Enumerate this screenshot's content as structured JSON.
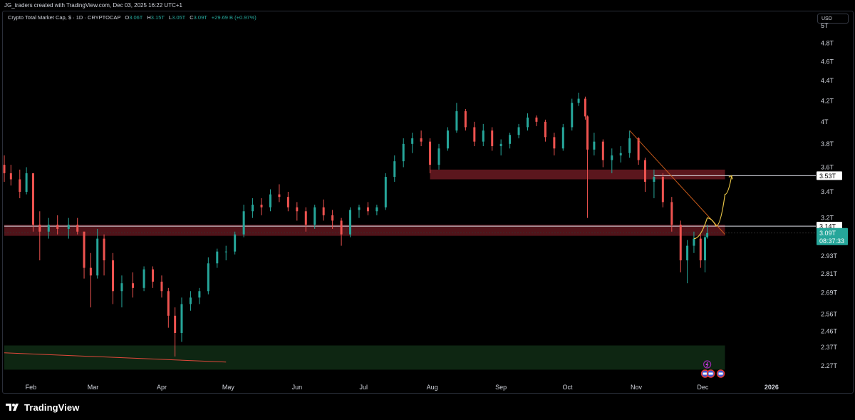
{
  "credit": "JG_traders created with TradingView.com, Dec 03, 2025 16:22 UTC+1",
  "legend": {
    "title": "Crypto Total Market Cap, $ · 1D · CRYPTOCAP",
    "o_label": "O",
    "o_value": "3.06T",
    "h_label": "H",
    "h_value": "3.15T",
    "l_label": "L",
    "l_value": "3.05T",
    "c_label": "C",
    "c_value": "3.09T",
    "change": "+29.69 B (+0.97%)"
  },
  "currency_button": "USD",
  "brand": "TradingView",
  "colors": {
    "up": "#26a69a",
    "down": "#ef5350",
    "supply_zone": "#6b1a22",
    "demand_zone": "#0f2a14",
    "trendline": "#c75a1a",
    "projection": "#e8c547",
    "price_tag": "#26a69a"
  },
  "chart_data": {
    "type": "candlestick",
    "x_ticks": [
      "Feb",
      "Mar",
      "Apr",
      "May",
      "Jun",
      "Jul",
      "Aug",
      "Sep",
      "Oct",
      "Nov",
      "Dec",
      "2026"
    ],
    "y_ticks": [
      "5T",
      "4.8T",
      "4.6T",
      "4.4T",
      "4.2T",
      "4T",
      "3.8T",
      "3.6T",
      "3.4T",
      "3.2T",
      "2.93T",
      "2.81T",
      "2.69T",
      "2.56T",
      "2.46T",
      "2.37T",
      "2.27T"
    ],
    "y_unit": "T",
    "y_scale": "log",
    "ylim": [
      2.2,
      5.05
    ],
    "xlim": [
      "2025-01-20",
      "2026-01-20"
    ],
    "price_labels": [
      {
        "label": "3.53T",
        "value": 3.53,
        "style": "line"
      },
      {
        "label": "3.14T",
        "value": 3.14,
        "style": "line"
      },
      {
        "label": "3.09T",
        "value": 3.09,
        "style": "current",
        "countdown": "08:37:33"
      }
    ],
    "zones": [
      {
        "name": "supply zone Aug",
        "from": "2025-07-31",
        "to": "2025-12-11",
        "low": 3.5,
        "high": 3.58
      },
      {
        "name": "red zone",
        "from": "2025-01-20",
        "to": "2025-12-11",
        "low": 3.07,
        "high": 3.15
      },
      {
        "name": "demand zone",
        "from": "2025-01-20",
        "to": "2025-12-11",
        "low": 2.25,
        "high": 2.38
      }
    ],
    "candles_approx": [
      [
        "2025-01-20",
        3.62,
        3.7,
        3.48,
        3.55
      ],
      [
        "2025-01-23",
        3.55,
        3.62,
        3.45,
        3.5
      ],
      [
        "2025-01-27",
        3.5,
        3.58,
        3.35,
        3.4
      ],
      [
        "2025-01-30",
        3.4,
        3.6,
        3.38,
        3.55
      ],
      [
        "2025-02-02",
        3.55,
        3.55,
        3.1,
        3.15
      ],
      [
        "2025-02-05",
        3.15,
        3.25,
        2.9,
        3.1
      ],
      [
        "2025-02-09",
        3.1,
        3.2,
        3.05,
        3.15
      ],
      [
        "2025-02-13",
        3.15,
        3.22,
        3.08,
        3.12
      ],
      [
        "2025-02-18",
        3.12,
        3.2,
        3.05,
        3.15
      ],
      [
        "2025-02-22",
        3.15,
        3.2,
        3.08,
        3.1
      ],
      [
        "2025-02-25",
        3.1,
        3.1,
        2.78,
        2.85
      ],
      [
        "2025-02-28",
        2.85,
        2.95,
        2.6,
        2.8
      ],
      [
        "2025-03-03",
        2.8,
        3.12,
        2.78,
        3.05
      ],
      [
        "2025-03-06",
        3.05,
        3.08,
        2.8,
        2.9
      ],
      [
        "2025-03-10",
        2.9,
        2.95,
        2.62,
        2.7
      ],
      [
        "2025-03-14",
        2.7,
        2.8,
        2.6,
        2.75
      ],
      [
        "2025-03-19",
        2.75,
        2.82,
        2.66,
        2.72
      ],
      [
        "2025-03-24",
        2.72,
        2.86,
        2.7,
        2.84
      ],
      [
        "2025-03-28",
        2.84,
        2.86,
        2.72,
        2.76
      ],
      [
        "2025-04-01",
        2.76,
        2.8,
        2.66,
        2.7
      ],
      [
        "2025-04-04",
        2.7,
        2.72,
        2.48,
        2.55
      ],
      [
        "2025-04-07",
        2.55,
        2.6,
        2.32,
        2.45
      ],
      [
        "2025-04-10",
        2.45,
        2.66,
        2.4,
        2.62
      ],
      [
        "2025-04-14",
        2.62,
        2.7,
        2.58,
        2.66
      ],
      [
        "2025-04-18",
        2.66,
        2.72,
        2.62,
        2.7
      ],
      [
        "2025-04-22",
        2.7,
        2.92,
        2.68,
        2.88
      ],
      [
        "2025-04-26",
        2.88,
        2.98,
        2.85,
        2.96
      ],
      [
        "2025-04-30",
        2.96,
        3.0,
        2.9,
        2.96
      ],
      [
        "2025-05-04",
        2.96,
        3.1,
        2.94,
        3.08
      ],
      [
        "2025-05-08",
        3.08,
        3.3,
        3.06,
        3.25
      ],
      [
        "2025-05-12",
        3.25,
        3.35,
        3.2,
        3.3
      ],
      [
        "2025-05-16",
        3.3,
        3.35,
        3.22,
        3.28
      ],
      [
        "2025-05-20",
        3.28,
        3.42,
        3.25,
        3.38
      ],
      [
        "2025-05-24",
        3.38,
        3.46,
        3.32,
        3.36
      ],
      [
        "2025-05-28",
        3.36,
        3.4,
        3.25,
        3.28
      ],
      [
        "2025-06-01",
        3.28,
        3.32,
        3.18,
        3.25
      ],
      [
        "2025-06-05",
        3.25,
        3.28,
        3.1,
        3.15
      ],
      [
        "2025-06-09",
        3.15,
        3.3,
        3.12,
        3.28
      ],
      [
        "2025-06-13",
        3.28,
        3.34,
        3.18,
        3.22
      ],
      [
        "2025-06-17",
        3.22,
        3.26,
        3.12,
        3.18
      ],
      [
        "2025-06-21",
        3.18,
        3.2,
        3.0,
        3.08
      ],
      [
        "2025-06-25",
        3.08,
        3.28,
        3.06,
        3.26
      ],
      [
        "2025-06-29",
        3.26,
        3.3,
        3.2,
        3.28
      ],
      [
        "2025-07-03",
        3.28,
        3.32,
        3.22,
        3.25
      ],
      [
        "2025-07-07",
        3.25,
        3.3,
        3.22,
        3.28
      ],
      [
        "2025-07-11",
        3.28,
        3.55,
        3.26,
        3.52
      ],
      [
        "2025-07-15",
        3.52,
        3.7,
        3.48,
        3.65
      ],
      [
        "2025-07-19",
        3.65,
        3.85,
        3.6,
        3.8
      ],
      [
        "2025-07-23",
        3.8,
        3.9,
        3.72,
        3.85
      ],
      [
        "2025-07-27",
        3.85,
        3.92,
        3.78,
        3.82
      ],
      [
        "2025-07-31",
        3.82,
        3.85,
        3.55,
        3.62
      ],
      [
        "2025-08-04",
        3.62,
        3.8,
        3.58,
        3.76
      ],
      [
        "2025-08-08",
        3.76,
        3.95,
        3.74,
        3.92
      ],
      [
        "2025-08-12",
        3.92,
        4.18,
        3.9,
        4.1
      ],
      [
        "2025-08-16",
        4.1,
        4.12,
        3.92,
        3.95
      ],
      [
        "2025-08-20",
        3.95,
        4.0,
        3.78,
        3.82
      ],
      [
        "2025-08-24",
        3.82,
        3.98,
        3.78,
        3.92
      ],
      [
        "2025-08-28",
        3.92,
        3.95,
        3.74,
        3.78
      ],
      [
        "2025-09-01",
        3.78,
        3.84,
        3.7,
        3.8
      ],
      [
        "2025-09-05",
        3.8,
        3.9,
        3.76,
        3.88
      ],
      [
        "2025-09-09",
        3.88,
        3.98,
        3.85,
        3.95
      ],
      [
        "2025-09-13",
        3.95,
        4.08,
        3.92,
        4.04
      ],
      [
        "2025-09-17",
        4.04,
        4.06,
        3.96,
        4.0
      ],
      [
        "2025-09-21",
        4.0,
        4.02,
        3.82,
        3.86
      ],
      [
        "2025-09-25",
        3.86,
        3.9,
        3.7,
        3.76
      ],
      [
        "2025-09-29",
        3.76,
        3.98,
        3.74,
        3.95
      ],
      [
        "2025-10-03",
        3.95,
        4.22,
        3.92,
        4.18
      ],
      [
        "2025-10-06",
        4.18,
        4.28,
        4.15,
        4.22
      ],
      [
        "2025-10-09",
        4.22,
        4.24,
        4.02,
        4.05
      ],
      [
        "2025-10-10",
        4.05,
        4.06,
        3.2,
        3.75
      ],
      [
        "2025-10-13",
        3.75,
        3.9,
        3.7,
        3.82
      ],
      [
        "2025-10-17",
        3.82,
        3.84,
        3.6,
        3.66
      ],
      [
        "2025-10-21",
        3.66,
        3.76,
        3.55,
        3.7
      ],
      [
        "2025-10-25",
        3.7,
        3.78,
        3.64,
        3.72
      ],
      [
        "2025-10-29",
        3.72,
        3.92,
        3.68,
        3.85
      ],
      [
        "2025-11-02",
        3.85,
        3.86,
        3.62,
        3.66
      ],
      [
        "2025-11-05",
        3.66,
        3.68,
        3.4,
        3.48
      ],
      [
        "2025-11-09",
        3.48,
        3.58,
        3.35,
        3.52
      ],
      [
        "2025-11-13",
        3.52,
        3.55,
        3.28,
        3.32
      ],
      [
        "2025-11-17",
        3.32,
        3.36,
        3.1,
        3.15
      ],
      [
        "2025-11-21",
        3.15,
        3.18,
        2.82,
        2.9
      ],
      [
        "2025-11-24",
        2.9,
        3.04,
        2.75,
        3.0
      ],
      [
        "2025-11-27",
        3.0,
        3.1,
        2.95,
        3.05
      ],
      [
        "2025-11-30",
        3.05,
        3.08,
        2.85,
        2.9
      ],
      [
        "2025-12-02",
        2.9,
        3.08,
        2.82,
        3.06
      ],
      [
        "2025-12-03",
        3.06,
        3.15,
        3.05,
        3.09
      ]
    ],
    "trendlines": [
      {
        "name": "red trendline",
        "points": [
          [
            "2025-01-20",
            2.34
          ],
          [
            "2025-04-30",
            2.29
          ]
        ]
      },
      {
        "name": "orange trendline",
        "points": [
          [
            "2025-10-29",
            3.92
          ],
          [
            "2025-12-11",
            3.08
          ]
        ]
      }
    ],
    "projection_path": [
      [
        "2025-11-27",
        3.05
      ],
      [
        "2025-12-03",
        3.2
      ],
      [
        "2025-12-07",
        3.14
      ],
      [
        "2025-12-11",
        3.38
      ],
      [
        "2025-12-14",
        3.53
      ]
    ]
  }
}
